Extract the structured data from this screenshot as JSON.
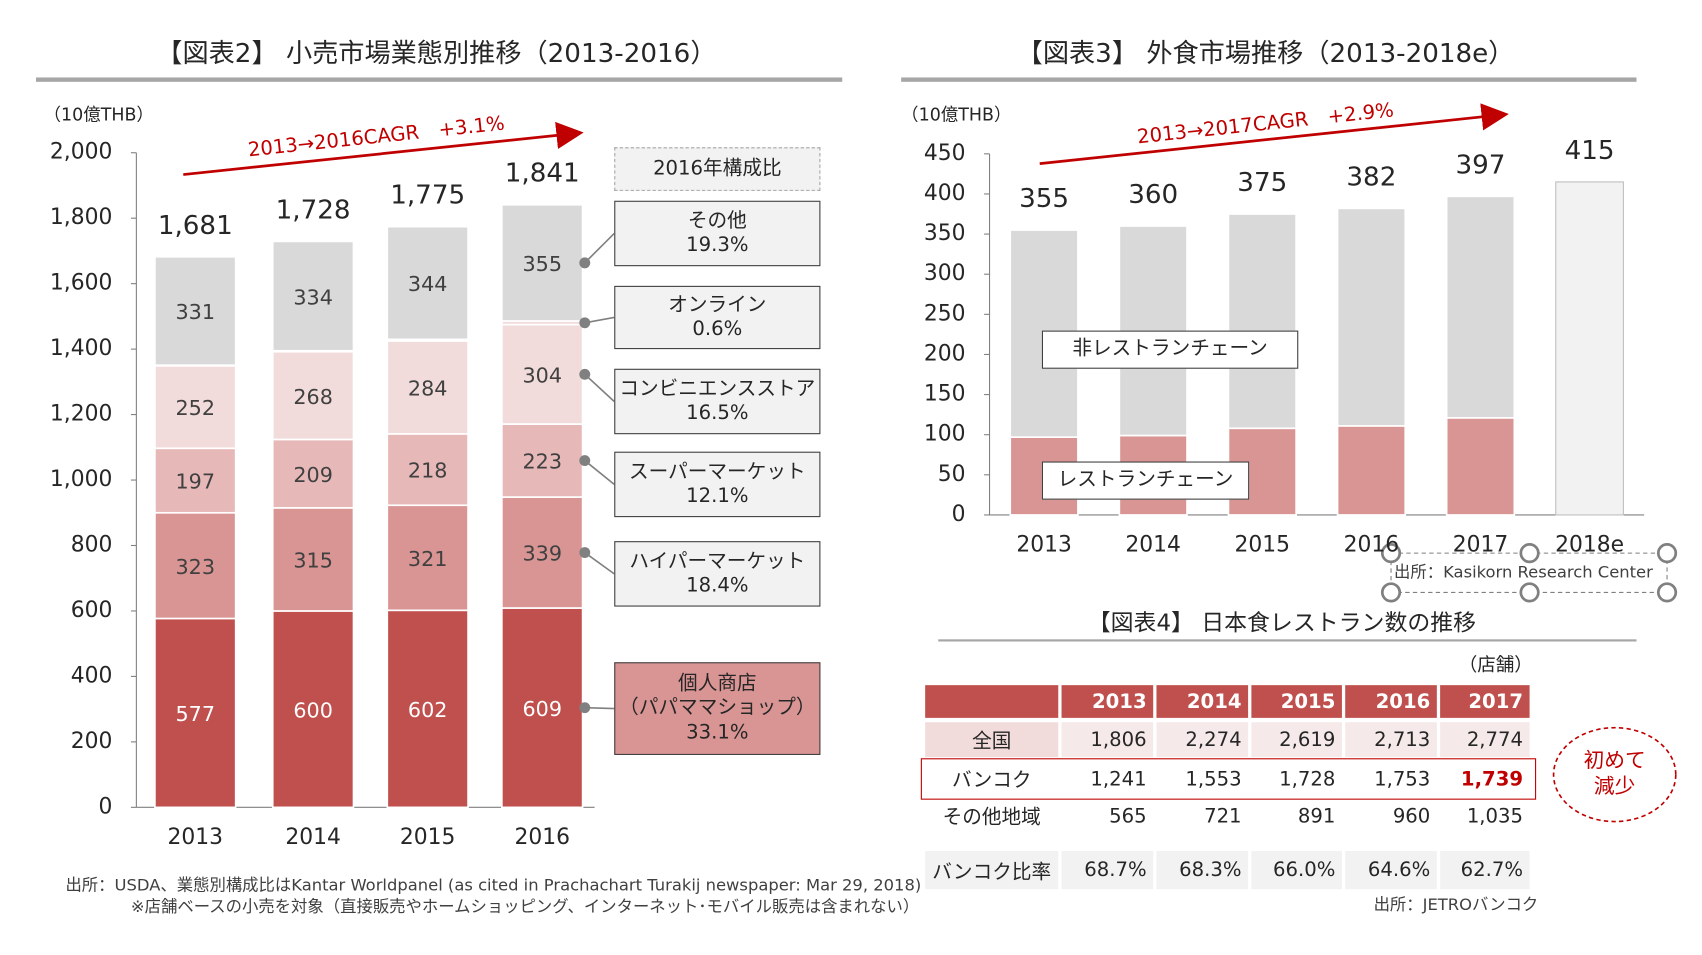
{
  "chart_data": [
    {
      "type": "stacked_bar",
      "title": "【図表2】 小売市場業態別推移（2013-2016）",
      "unit": "（10億THB）",
      "annotation": "2013→2016CAGR　+3.1%",
      "categories": [
        "2013",
        "2014",
        "2015",
        "2016"
      ],
      "series": [
        {
          "name": "個人商店\n（パパママショップ）",
          "color": "#c0504d",
          "values": [
            577,
            600,
            602,
            609
          ]
        },
        {
          "name": "ハイパーマーケット",
          "color": "#d99594",
          "values": [
            323,
            315,
            321,
            339
          ]
        },
        {
          "name": "スーパーマーケット",
          "color": "#e6b9b8",
          "values": [
            197,
            209,
            218,
            223
          ]
        },
        {
          "name": "コンビニエンスストア",
          "color": "#f2dcdb",
          "values": [
            252,
            268,
            284,
            304
          ]
        },
        {
          "name": "オンライン",
          "color": "#f2dcdb",
          "values": [
            2,
            3,
            5,
            11
          ]
        },
        {
          "name": "その他",
          "color": "#d9d9d9",
          "values": [
            331,
            334,
            344,
            355
          ]
        }
      ],
      "show_values": true,
      "totals": {
        "values": [
          1681,
          1728,
          1775,
          1841
        ],
        "value_labels": [
          "1,681",
          "1,728",
          "1,775",
          "1,841"
        ]
      },
      "composition": {
        "title": "2016年構成比",
        "values": [
          33.1,
          18.4,
          12.1,
          16.5,
          0.6,
          19.3
        ],
        "value_labels": [
          "33.1%",
          "18.4%",
          "12.1%",
          "16.5%",
          "0.6%",
          "19.3%"
        ]
      },
      "ylim": [
        0,
        2000
      ],
      "yticks": [
        0,
        200,
        400,
        600,
        800,
        {
          "value": 1000,
          "label": "1,000"
        },
        {
          "value": 1200,
          "label": "1,200"
        },
        {
          "value": 1400,
          "label": "1,400"
        },
        {
          "value": 1600,
          "label": "1,600"
        },
        {
          "value": 1800,
          "label": "1,800"
        },
        {
          "value": 2000,
          "label": "2,000"
        }
      ],
      "source": "出所：USDA、業態別構成比はKantar Worldpanel (as cited in Prachachart Turakij newspaper: Mar 29, 2018)",
      "note": "※店舗ベースの小売を対象（直接販売やホームショッピング、インターネット･モバイル販売は含まれない）"
    },
    {
      "type": "stacked_bar",
      "title": "【図表3】 外食市場推移（2013-2018e）",
      "unit": "（10億THB）",
      "annotation": "2013→2017CAGR　+2.9%",
      "categories": [
        "2013",
        "2014",
        "2015",
        "2016",
        "2017",
        "2018e"
      ],
      "series": [
        {
          "name": "レストランチェーン",
          "color": "#d99594",
          "values": [
            97,
            99,
            108,
            111,
            121,
            null
          ]
        },
        {
          "name": "非レストランチェーン",
          "color": "#d9d9d9",
          "values": [
            258,
            261,
            267,
            271,
            276,
            null
          ]
        }
      ],
      "show_values": false,
      "totals": {
        "values": [
          355,
          360,
          375,
          382,
          397,
          415
        ],
        "color": "#f2f2f2"
      },
      "ylim": [
        0,
        450
      ],
      "yticks": [
        0,
        50,
        100,
        150,
        200,
        250,
        300,
        350,
        400,
        450
      ],
      "source": "出所：Kasikorn Research Center"
    }
  ],
  "table": {
    "title": "【図表4】 日本食レストラン数の推移",
    "unit": "（店舗）",
    "columns": [
      "2013",
      "2014",
      "2015",
      "2016",
      "2017"
    ],
    "rows": [
      {
        "label": "全国",
        "cells": [
          "1,806",
          "2,274",
          "2,619",
          "2,713",
          "2,774"
        ]
      },
      {
        "label": "バンコク",
        "cells": [
          "1,241",
          "1,553",
          "1,728",
          "1,753",
          "1,739"
        ]
      },
      {
        "label": "その他地域",
        "cells": [
          "565",
          "721",
          "891",
          "960",
          "1,035"
        ]
      },
      {
        "label": "バンコク比率",
        "cells": [
          "68.7%",
          "68.3%",
          "66.0%",
          "64.6%",
          "62.7%"
        ]
      }
    ],
    "highlight": "初めて\n減少",
    "source": "出所：JETROバンコク"
  }
}
